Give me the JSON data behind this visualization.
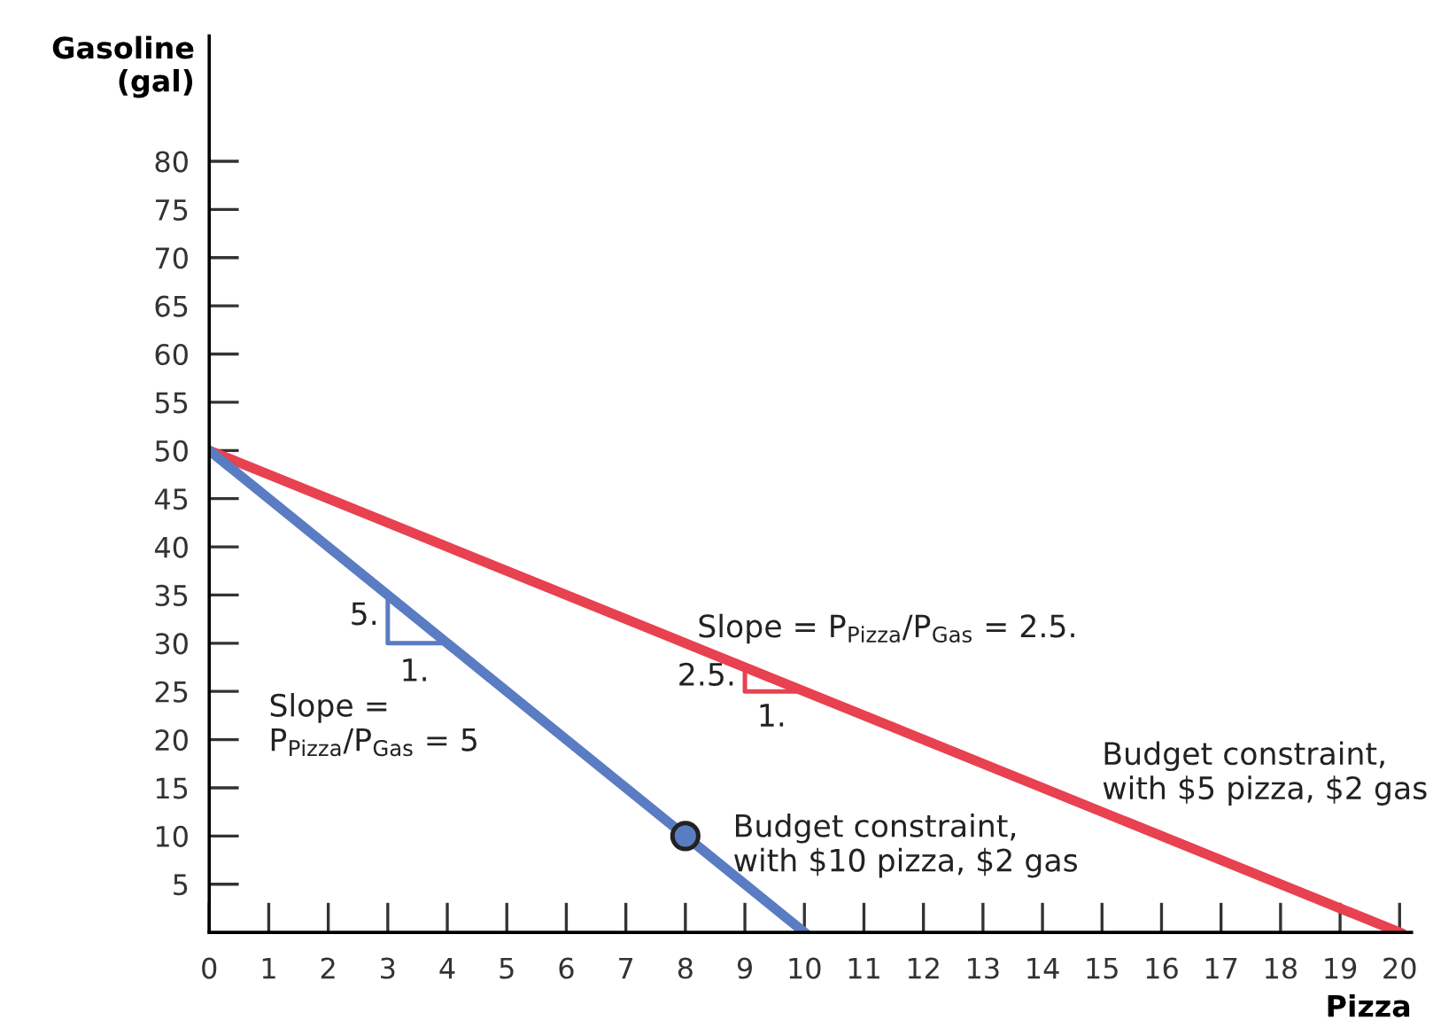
{
  "chart_data": {
    "type": "line",
    "xlabel": "Pizza",
    "ylabel": "Gasoline\n(gal)",
    "xlim": [
      0,
      20.2
    ],
    "ylim": [
      0,
      93
    ],
    "xticks": [
      {
        "value": 0,
        "label": "0"
      },
      1,
      2,
      3,
      4,
      5,
      6,
      7,
      8,
      9,
      10,
      11,
      12,
      13,
      14,
      15,
      16,
      17,
      18,
      19,
      20
    ],
    "yticks": [
      5,
      10,
      15,
      20,
      25,
      30,
      35,
      40,
      45,
      50,
      55,
      60,
      65,
      70,
      75,
      80
    ],
    "grid": false,
    "legend": false,
    "series": [
      {
        "type": "line",
        "x": [
          0,
          20
        ],
        "values": [
          50,
          0
        ],
        "color": "#e8414f"
      },
      {
        "type": "line",
        "x": [
          0,
          10
        ],
        "values": [
          50,
          0
        ],
        "color": "#5a7cc2"
      },
      {
        "type": "line",
        "x": [
          3,
          3,
          4
        ],
        "values": [
          35,
          30,
          30
        ],
        "color": "#5a7cc2"
      },
      {
        "type": "line",
        "x": [
          9,
          9,
          10
        ],
        "values": [
          27.5,
          25,
          25
        ],
        "color": "#e8414f"
      },
      {
        "type": "scatter",
        "x": [
          8
        ],
        "values": [
          10
        ],
        "color": "#5a7cc2",
        "marker": "circle"
      }
    ],
    "annotations": [
      "5.",
      "1.",
      "2.5.",
      "1.",
      "Slope =\nP$_{Pizza}$/P$_{Gas}$ = 5",
      "Slope = P$_{Pizza}$/P$_{Gas}$ = 2.5.",
      "Budget constraint,\nwith $10 pizza, $2 gas",
      "Budget constraint,\nwith $5 pizza, $2 gas"
    ]
  }
}
